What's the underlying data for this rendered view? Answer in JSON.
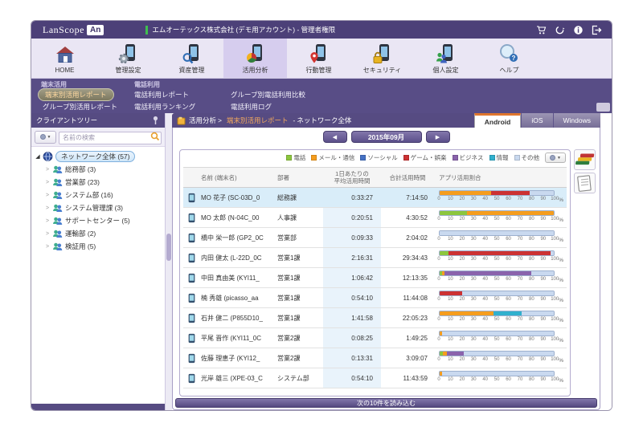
{
  "header": {
    "brand": "LanScope",
    "badge": "An",
    "account": "エムオーテックス株式会社 (デモ用アカウント) - 管理者権限",
    "icons": [
      "cart-icon",
      "sync-icon",
      "info-icon",
      "logout-icon"
    ]
  },
  "ribbon": {
    "items": [
      {
        "label": "HOME",
        "icon": "home-icon",
        "selected": false
      },
      {
        "label": "管理設定",
        "icon": "admin-settings-icon",
        "selected": false
      },
      {
        "label": "資産管理",
        "icon": "asset-management-icon",
        "selected": false
      },
      {
        "label": "活用分析",
        "icon": "usage-analysis-icon",
        "selected": true
      },
      {
        "label": "行動管理",
        "icon": "behavior-management-icon",
        "selected": false
      },
      {
        "label": "セキュリティ",
        "icon": "security-icon",
        "selected": false
      },
      {
        "label": "個人設定",
        "icon": "personal-settings-icon",
        "selected": false
      },
      {
        "label": "ヘルプ",
        "icon": "help-icon",
        "selected": false
      }
    ]
  },
  "submenu": {
    "group1": "端末活用",
    "group2": "電話利用",
    "items": {
      "c1r1": "端末別活用レポート",
      "c1r2": "グループ別活用レポート",
      "c2r1": "電話利用レポート",
      "c2r2": "電話利用ランキング",
      "c3r1": "グループ別電話利用比較",
      "c3r2": "電話利用ログ"
    },
    "selected": "端末別活用レポート"
  },
  "sidebar": {
    "title": "クライアントツリー",
    "search_placeholder": "名前の検索",
    "tree": {
      "root": "ネットワーク全体 (57)",
      "children": [
        "総務部 (3)",
        "営業部 (23)",
        "システム部 (16)",
        "システム管理課 (3)",
        "サポートセンター (5)",
        "運輸部 (2)",
        "検証用 (5)"
      ]
    }
  },
  "breadcrumb": {
    "section": "活用分析",
    "sep": ">",
    "page": "端末別活用レポート",
    "dash": "-",
    "scope": "ネットワーク全体"
  },
  "tabs": [
    {
      "label": "Android",
      "active": true
    },
    {
      "label": "iOS",
      "active": false
    },
    {
      "label": "Windows",
      "active": false
    }
  ],
  "date_nav": {
    "prev_icon": "◀",
    "label": "2015年09月",
    "next_icon": "▶"
  },
  "legend": {
    "items": [
      {
        "key": "phone",
        "label": "電話",
        "color": "#8cc63e"
      },
      {
        "key": "mail",
        "label": "メール・通信",
        "color": "#f59d1e"
      },
      {
        "key": "social",
        "label": "ソーシャル",
        "color": "#4571c4"
      },
      {
        "key": "game",
        "label": "ゲーム・娯楽",
        "color": "#cc3233"
      },
      {
        "key": "business",
        "label": "ビジネス",
        "color": "#8a63ac"
      },
      {
        "key": "info",
        "label": "情報",
        "color": "#31b0cd"
      },
      {
        "key": "other",
        "label": "その他",
        "color": "#c9d9ef"
      }
    ]
  },
  "table": {
    "headers": {
      "name": "名前 (端末名)",
      "dept": "部署",
      "avg1": "1日あたりの",
      "avg2": "平均活用時間",
      "total": "合計活用時間",
      "ratio": "アプリ活用割合"
    },
    "axis_ticks": [
      0,
      10,
      20,
      30,
      40,
      50,
      60,
      70,
      80,
      90,
      100
    ],
    "axis_unit": "%",
    "rows": [
      {
        "name": "MO 花子 (SC-03D_0",
        "dept": "総務課",
        "avg": "0:33:27",
        "total": "7:14:50",
        "selected": true,
        "segments": [
          {
            "k": "mail",
            "v": 45
          },
          {
            "k": "game",
            "v": 34
          },
          {
            "k": "other",
            "v": 21
          }
        ]
      },
      {
        "name": "MO 太郎 (N-04C_00",
        "dept": "人事課",
        "avg": "0:20:51",
        "total": "4:30:52",
        "selected": false,
        "segments": [
          {
            "k": "phone",
            "v": 24
          },
          {
            "k": "mail",
            "v": 76
          }
        ]
      },
      {
        "name": "橋中 栄一郎 (GP2_0C",
        "dept": "営業部",
        "avg": "0:09:33",
        "total": "2:04:02",
        "selected": false,
        "segments": [
          {
            "k": "other",
            "v": 100
          }
        ]
      },
      {
        "name": "内田 健太 (L-22D_0C",
        "dept": "営業1課",
        "avg": "2:16:31",
        "total": "29:34:43",
        "selected": false,
        "segments": [
          {
            "k": "phone",
            "v": 8
          },
          {
            "k": "game",
            "v": 89
          },
          {
            "k": "other",
            "v": 3
          }
        ]
      },
      {
        "name": "中田 真由美 (KYI11_",
        "dept": "営業1課",
        "avg": "1:06:42",
        "total": "12:13:35",
        "selected": false,
        "segments": [
          {
            "k": "phone",
            "v": 2
          },
          {
            "k": "mail",
            "v": 2
          },
          {
            "k": "business",
            "v": 76
          },
          {
            "k": "other",
            "v": 20
          }
        ]
      },
      {
        "name": "楠 秀雄 (picasso_aa",
        "dept": "営業1課",
        "avg": "0:54:10",
        "total": "11:44:08",
        "selected": false,
        "segments": [
          {
            "k": "game",
            "v": 20
          },
          {
            "k": "other",
            "v": 80
          }
        ]
      },
      {
        "name": "石井 健二 (P855D10_",
        "dept": "営業1課",
        "avg": "1:41:58",
        "total": "22:05:23",
        "selected": false,
        "segments": [
          {
            "k": "mail",
            "v": 47
          },
          {
            "k": "info",
            "v": 25
          },
          {
            "k": "other",
            "v": 28
          }
        ]
      },
      {
        "name": "平尾 晋作 (KYI11_0C",
        "dept": "営業2課",
        "avg": "0:08:25",
        "total": "1:49:25",
        "selected": false,
        "segments": [
          {
            "k": "mail",
            "v": 2
          },
          {
            "k": "other",
            "v": 98
          }
        ]
      },
      {
        "name": "佐藤 理恵子 (KYI12_",
        "dept": "営業2課",
        "avg": "0:13:31",
        "total": "3:09:07",
        "selected": false,
        "segments": [
          {
            "k": "phone",
            "v": 3
          },
          {
            "k": "mail",
            "v": 3
          },
          {
            "k": "business",
            "v": 15
          },
          {
            "k": "other",
            "v": 79
          }
        ]
      },
      {
        "name": "光岸 雄三 (XPE-03_C",
        "dept": "システム部",
        "avg": "0:54:10",
        "total": "11:43:59",
        "selected": false,
        "segments": [
          {
            "k": "mail",
            "v": 2
          },
          {
            "k": "other",
            "v": 98
          }
        ]
      }
    ]
  },
  "load_more": {
    "label": "次の10件を読み込む"
  }
}
